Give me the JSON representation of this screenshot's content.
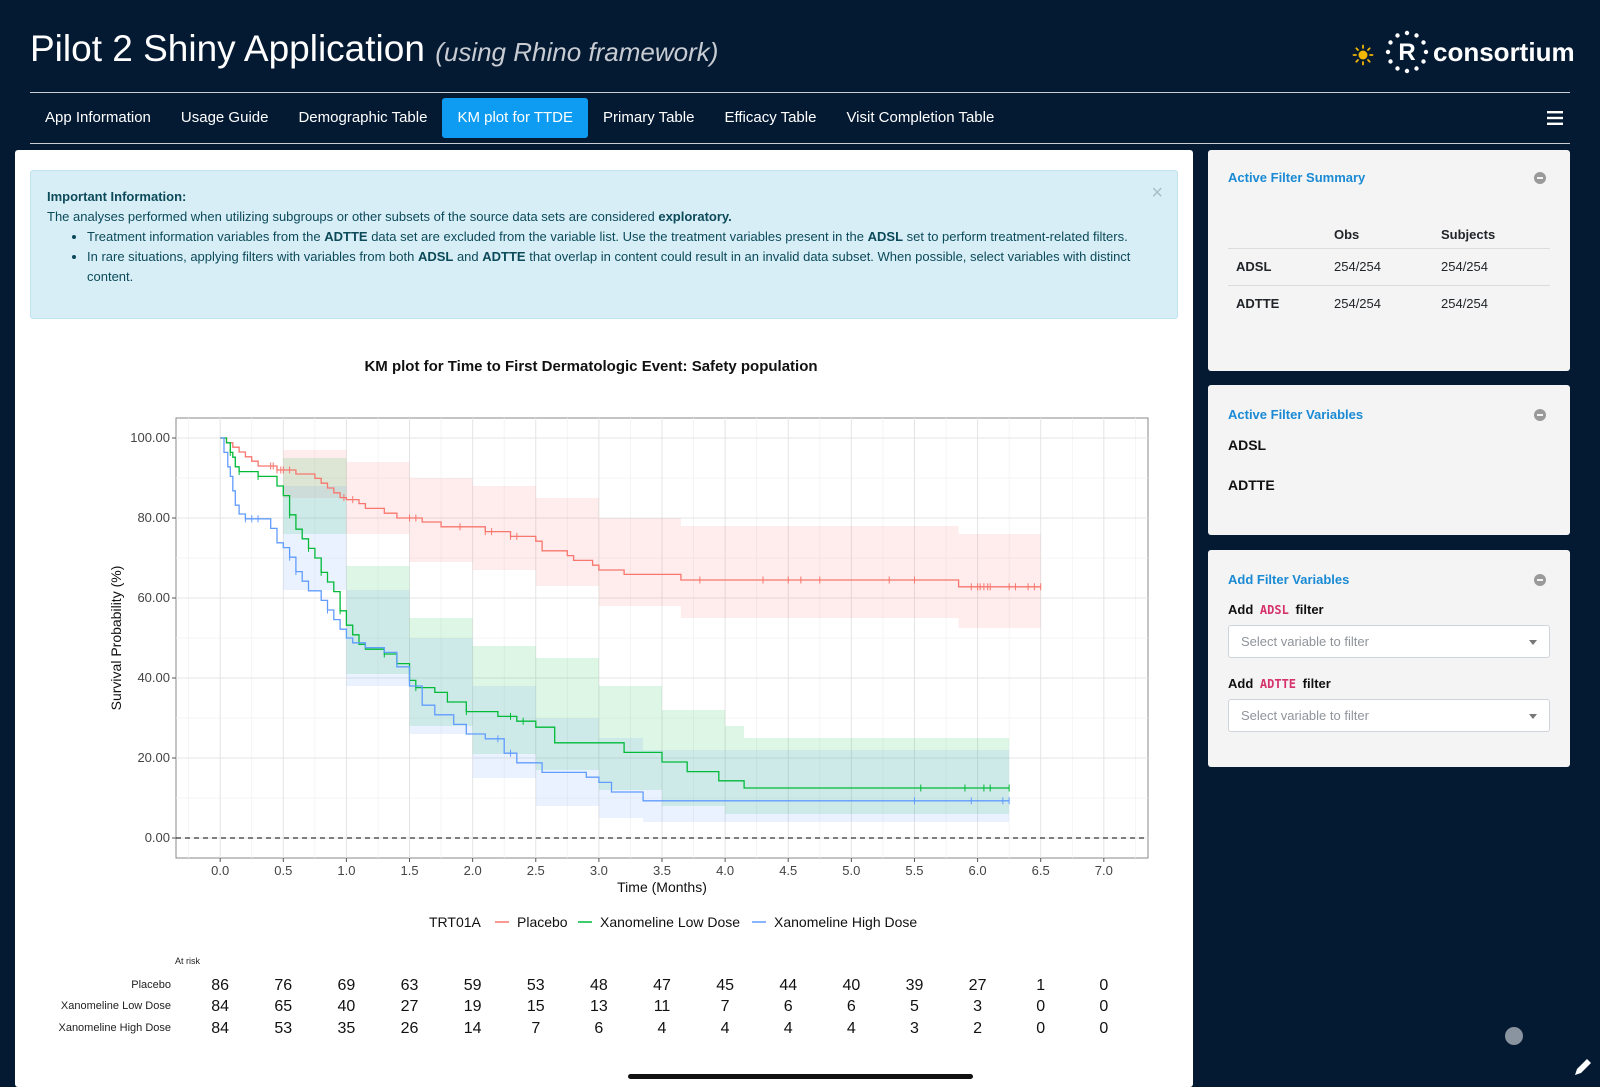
{
  "header": {
    "title": "Pilot 2 Shiny Application",
    "subtitle": "(using Rhino framework)",
    "theme_icon": "sun-icon",
    "logo_text": "consortium",
    "logo_letter": "R"
  },
  "nav": {
    "tabs": [
      {
        "label": "App Information",
        "active": false
      },
      {
        "label": "Usage Guide",
        "active": false
      },
      {
        "label": "Demographic Table",
        "active": false
      },
      {
        "label": "KM plot for TTDE",
        "active": true
      },
      {
        "label": "Primary Table",
        "active": false
      },
      {
        "label": "Efficacy Table",
        "active": false
      },
      {
        "label": "Visit Completion Table",
        "active": false
      }
    ],
    "menu_icon": "hamburger-icon"
  },
  "alert": {
    "title": "Important Information:",
    "intro_text": "The analyses performed when utilizing subgroups or other subsets of the source data sets are considered ",
    "intro_bold": "exploratory.",
    "bullet1": {
      "t1": "Treatment information variables from the ",
      "b1": "ADTTE",
      "t2": " data set are excluded from the variable list. Use the treatment variables present in the ",
      "b2": "ADSL",
      "t3": " set to perform treatment-related filters."
    },
    "bullet2": {
      "t1": "In rare situations, applying filters with variables from both ",
      "b1": "ADSL",
      "t2": " and ",
      "b2": "ADTTE",
      "t3": " that overlap in content could result in an invalid data subset. When possible, select variables with distinct content."
    },
    "close_symbol": "×"
  },
  "chart_data": {
    "type": "line",
    "title": "KM plot for Time to First Dermatologic Event: Safety population",
    "xlabel": "Time (Months)",
    "ylabel": "Survival Probability (%)",
    "xlim": [
      -0.35,
      7.35
    ],
    "ylim": [
      -5,
      105
    ],
    "x_ticks": [
      0.0,
      0.5,
      1.0,
      1.5,
      2.0,
      2.5,
      3.0,
      3.5,
      4.0,
      4.5,
      5.0,
      5.5,
      6.0,
      6.5,
      7.0
    ],
    "y_ticks": [
      0,
      20,
      40,
      60,
      80,
      100
    ],
    "y_tick_labels": [
      "0.00",
      "20.00",
      "40.00",
      "60.00",
      "80.00",
      "100.00"
    ],
    "x_tick_labels": [
      "0.0",
      "0.5",
      "1.0",
      "1.5",
      "2.0",
      "2.5",
      "3.0",
      "3.5",
      "4.0",
      "4.5",
      "5.0",
      "5.5",
      "6.0",
      "6.5",
      "7.0"
    ],
    "grid": true,
    "reference_line_y": 0,
    "legend_title": "TRT01A",
    "legend_position": "bottom",
    "series": [
      {
        "name": "Placebo",
        "color": "#f8766d",
        "steps": [
          [
            0,
            100
          ],
          [
            0.05,
            98.8
          ],
          [
            0.1,
            97.7
          ],
          [
            0.15,
            96.5
          ],
          [
            0.2,
            95.3
          ],
          [
            0.25,
            94.2
          ],
          [
            0.3,
            93.0
          ],
          [
            0.4,
            93.0
          ],
          [
            0.45,
            92.0
          ],
          [
            0.55,
            92.0
          ],
          [
            0.6,
            91.0
          ],
          [
            0.75,
            89.9
          ],
          [
            0.8,
            88.7
          ],
          [
            0.85,
            87.5
          ],
          [
            0.9,
            86.3
          ],
          [
            0.95,
            85.1
          ],
          [
            1.0,
            84.6
          ],
          [
            1.1,
            83.6
          ],
          [
            1.15,
            82.4
          ],
          [
            1.3,
            81.2
          ],
          [
            1.4,
            80.0
          ],
          [
            1.6,
            79.0
          ],
          [
            1.75,
            77.8
          ],
          [
            2.1,
            76.6
          ],
          [
            2.3,
            75.4
          ],
          [
            2.5,
            74.2
          ],
          [
            2.55,
            71.8
          ],
          [
            2.75,
            70.6
          ],
          [
            2.8,
            69.4
          ],
          [
            2.95,
            68.2
          ],
          [
            3.0,
            67.0
          ],
          [
            3.2,
            65.9
          ],
          [
            3.65,
            64.5
          ],
          [
            5.85,
            62.8
          ],
          [
            6.5,
            62.8
          ]
        ],
        "censor_times": [
          0.4,
          0.42,
          0.45,
          0.48,
          0.5,
          0.55,
          0.98,
          1.05,
          1.5,
          1.55,
          1.9,
          2.1,
          2.15,
          2.3,
          2.35,
          3.8,
          4.3,
          4.5,
          4.6,
          4.75,
          5.3,
          5.5,
          5.95,
          6.0,
          6.02,
          6.05,
          6.08,
          6.1,
          6.25,
          6.3,
          6.4,
          6.45,
          6.5
        ],
        "ci_upper": [
          [
            0,
            100
          ],
          [
            0.5,
            97
          ],
          [
            1.0,
            94
          ],
          [
            1.5,
            90
          ],
          [
            2.0,
            88
          ],
          [
            2.5,
            85
          ],
          [
            3.0,
            80
          ],
          [
            3.65,
            78
          ],
          [
            5.85,
            76
          ],
          [
            6.5,
            76
          ]
        ],
        "ci_lower": [
          [
            0,
            100
          ],
          [
            0.5,
            85
          ],
          [
            1.0,
            76
          ],
          [
            1.5,
            69
          ],
          [
            2.0,
            67
          ],
          [
            2.5,
            63
          ],
          [
            3.0,
            58
          ],
          [
            3.65,
            55
          ],
          [
            5.85,
            52.5
          ],
          [
            6.5,
            52.5
          ]
        ],
        "at_risk": [
          86,
          76,
          69,
          63,
          59,
          53,
          48,
          47,
          45,
          44,
          40,
          39,
          27,
          1,
          0
        ]
      },
      {
        "name": "Xanomeline Low Dose",
        "color": "#00ba38",
        "steps": [
          [
            0,
            100
          ],
          [
            0.05,
            98.8
          ],
          [
            0.08,
            96.4
          ],
          [
            0.1,
            95.2
          ],
          [
            0.12,
            92.8
          ],
          [
            0.15,
            91.6
          ],
          [
            0.2,
            91.6
          ],
          [
            0.3,
            90.4
          ],
          [
            0.45,
            88.0
          ],
          [
            0.5,
            85.6
          ],
          [
            0.55,
            80.8
          ],
          [
            0.6,
            77.2
          ],
          [
            0.65,
            74.8
          ],
          [
            0.7,
            72.4
          ],
          [
            0.75,
            70.0
          ],
          [
            0.8,
            66.4
          ],
          [
            0.85,
            64.0
          ],
          [
            0.9,
            61.6
          ],
          [
            0.95,
            56.8
          ],
          [
            1.0,
            53.2
          ],
          [
            1.05,
            50.8
          ],
          [
            1.1,
            48.4
          ],
          [
            1.15,
            47.2
          ],
          [
            1.3,
            46.0
          ],
          [
            1.4,
            43.6
          ],
          [
            1.5,
            39.4
          ],
          [
            1.55,
            37.6
          ],
          [
            1.7,
            36.4
          ],
          [
            1.8,
            34.0
          ],
          [
            1.95,
            31.6
          ],
          [
            2.2,
            30.4
          ],
          [
            2.35,
            29.2
          ],
          [
            2.5,
            27.7
          ],
          [
            2.65,
            23.8
          ],
          [
            3.2,
            21.4
          ],
          [
            3.5,
            19.0
          ],
          [
            3.7,
            16.6
          ],
          [
            3.95,
            14.3
          ],
          [
            4.15,
            12.5
          ],
          [
            6.25,
            12.5
          ]
        ],
        "censor_times": [
          0.08,
          0.15,
          0.3,
          0.55,
          0.7,
          0.8,
          0.95,
          1.3,
          1.4,
          1.55,
          1.95,
          2.3,
          2.4,
          5.55,
          5.9,
          6.05,
          6.1,
          6.25
        ],
        "ci_upper": [
          [
            0,
            100
          ],
          [
            0.5,
            95
          ],
          [
            1.0,
            68
          ],
          [
            1.5,
            55
          ],
          [
            2.0,
            48
          ],
          [
            2.5,
            45
          ],
          [
            3.0,
            38
          ],
          [
            3.5,
            32
          ],
          [
            4.0,
            28
          ],
          [
            4.15,
            25
          ],
          [
            6.25,
            25
          ]
        ],
        "ci_lower": [
          [
            0,
            100
          ],
          [
            0.5,
            76
          ],
          [
            1.0,
            41
          ],
          [
            1.5,
            28
          ],
          [
            2.0,
            21
          ],
          [
            2.5,
            17
          ],
          [
            3.0,
            12
          ],
          [
            3.5,
            8
          ],
          [
            4.0,
            6
          ],
          [
            6.25,
            6
          ]
        ],
        "at_risk": [
          84,
          65,
          40,
          27,
          19,
          15,
          13,
          11,
          7,
          6,
          6,
          5,
          3,
          0,
          0
        ]
      },
      {
        "name": "Xanomeline High Dose",
        "color": "#619cff",
        "steps": [
          [
            0,
            100
          ],
          [
            0.03,
            96.4
          ],
          [
            0.06,
            92.8
          ],
          [
            0.08,
            90.4
          ],
          [
            0.1,
            86.8
          ],
          [
            0.12,
            83.2
          ],
          [
            0.15,
            81.0
          ],
          [
            0.2,
            79.8
          ],
          [
            0.35,
            79.8
          ],
          [
            0.4,
            77.4
          ],
          [
            0.45,
            73.8
          ],
          [
            0.5,
            72.6
          ],
          [
            0.55,
            70.2
          ],
          [
            0.6,
            66.6
          ],
          [
            0.65,
            64.2
          ],
          [
            0.7,
            61.8
          ],
          [
            0.8,
            59.4
          ],
          [
            0.85,
            57.0
          ],
          [
            0.9,
            54.6
          ],
          [
            0.95,
            52.2
          ],
          [
            1.0,
            50.0
          ],
          [
            1.05,
            48.8
          ],
          [
            1.15,
            47.6
          ],
          [
            1.3,
            46.4
          ],
          [
            1.4,
            42.8
          ],
          [
            1.5,
            38.0
          ],
          [
            1.6,
            33.2
          ],
          [
            1.7,
            30.8
          ],
          [
            1.85,
            28.4
          ],
          [
            1.95,
            26.0
          ],
          [
            2.1,
            24.8
          ],
          [
            2.25,
            21.2
          ],
          [
            2.35,
            18.8
          ],
          [
            2.55,
            16.4
          ],
          [
            2.9,
            15.2
          ],
          [
            3.0,
            13.9
          ],
          [
            3.1,
            11.5
          ],
          [
            3.35,
            9.3
          ],
          [
            6.25,
            9.3
          ]
        ],
        "censor_times": [
          0.2,
          0.25,
          0.3,
          0.55,
          0.6,
          0.85,
          2.2,
          2.3,
          5.5,
          5.95,
          6.2,
          6.25
        ],
        "ci_upper": [
          [
            0,
            100
          ],
          [
            0.5,
            88
          ],
          [
            1.0,
            62
          ],
          [
            1.5,
            50
          ],
          [
            2.0,
            38
          ],
          [
            2.5,
            30
          ],
          [
            3.0,
            25
          ],
          [
            3.35,
            22
          ],
          [
            6.25,
            22
          ]
        ],
        "ci_lower": [
          [
            0,
            100
          ],
          [
            0.5,
            62
          ],
          [
            1.0,
            38
          ],
          [
            1.5,
            26
          ],
          [
            2.0,
            15
          ],
          [
            2.5,
            8
          ],
          [
            3.0,
            5
          ],
          [
            3.35,
            4
          ],
          [
            6.25,
            4
          ]
        ],
        "at_risk": [
          84,
          53,
          35,
          26,
          14,
          7,
          6,
          4,
          4,
          4,
          4,
          3,
          2,
          0,
          0
        ]
      }
    ],
    "risk_table": {
      "header": "At risk",
      "row_labels": [
        "Placebo",
        "Xanomeline Low Dose",
        "Xanomeline High Dose"
      ]
    }
  },
  "filter_summary": {
    "title": "Active Filter Summary",
    "columns": [
      "",
      "Obs",
      "Subjects"
    ],
    "rows": [
      {
        "name": "ADSL",
        "obs": "254/254",
        "subjects": "254/254"
      },
      {
        "name": "ADTTE",
        "obs": "254/254",
        "subjects": "254/254"
      }
    ]
  },
  "filter_variables": {
    "title": "Active Filter Variables",
    "datasets": [
      "ADSL",
      "ADTTE"
    ]
  },
  "add_filter": {
    "title": "Add Filter Variables",
    "add_word": "Add",
    "filter_word": "filter",
    "adsl_code": "ADSL",
    "adtte_code": "ADTTE",
    "adsl_placeholder": "Select variable to filter",
    "adtte_placeholder": "Select variable to filter"
  }
}
